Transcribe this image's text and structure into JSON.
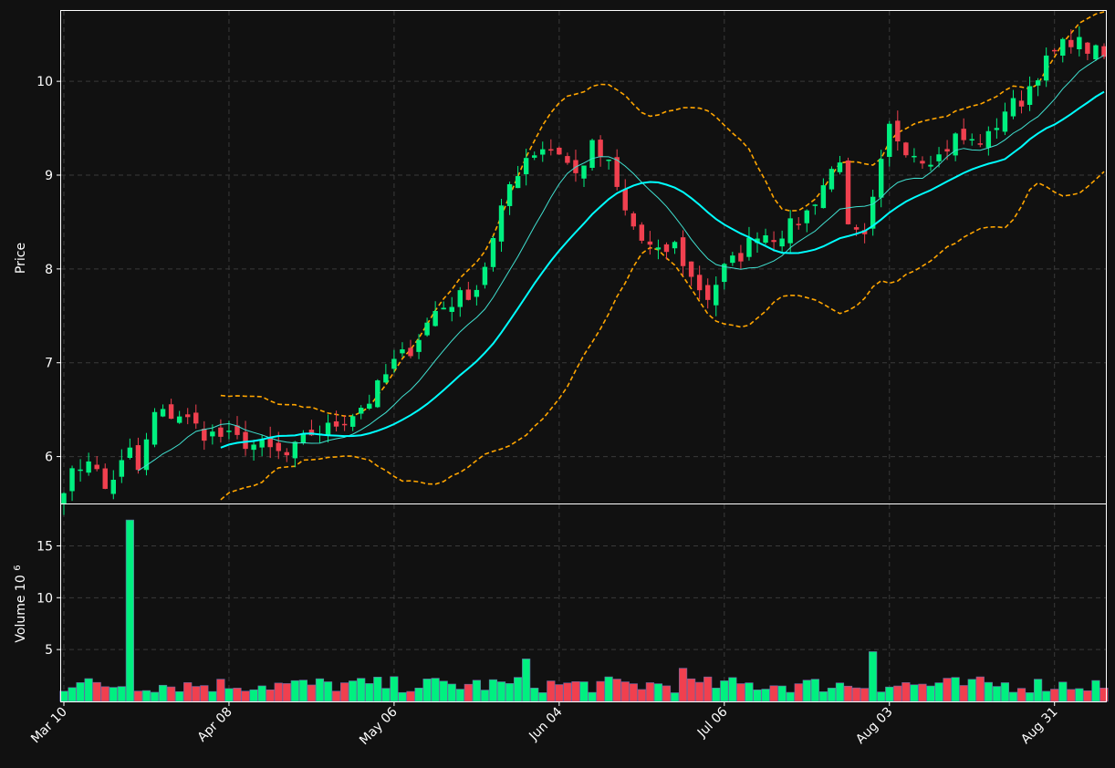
{
  "chart_data": {
    "type": "candlestick",
    "title": "",
    "colors": {
      "background": "#111111",
      "grid": "#3a3a3a",
      "axis": "#ffffff",
      "up": "#00f080",
      "down": "#f0404f",
      "ma_fast": "#40e0d0",
      "ma_slow": "#00ffff",
      "bands": "#ffa500"
    },
    "price_panel": {
      "ylabel": "Price",
      "ylim": [
        5.5,
        10.75
      ],
      "yticks": [
        6,
        7,
        8,
        9,
        10
      ]
    },
    "volume_panel": {
      "ylabel": "Volume",
      "ylabel_exponent": "10",
      "ylabel_exponent_power": "6",
      "ylim": [
        0,
        19
      ],
      "yticks": [
        5,
        10,
        15
      ]
    },
    "x_ticks": [
      {
        "label": "Mar 10",
        "index": 0
      },
      {
        "label": "Apr 08",
        "index": 20
      },
      {
        "label": "May 06",
        "index": 40
      },
      {
        "label": "Jun 04",
        "index": 60
      },
      {
        "label": "Jul 06",
        "index": 80
      },
      {
        "label": "Aug 03",
        "index": 100
      },
      {
        "label": "Aug 31",
        "index": 120
      }
    ],
    "grid": true,
    "ohlc_key_closes": [
      [
        0,
        5.7
      ],
      [
        3,
        6.0
      ],
      [
        5,
        5.65
      ],
      [
        8,
        6.05
      ],
      [
        9,
        5.85
      ],
      [
        11,
        6.45
      ],
      [
        14,
        6.45
      ],
      [
        17,
        6.25
      ],
      [
        20,
        6.2
      ],
      [
        24,
        6.1
      ],
      [
        27,
        6.0
      ],
      [
        30,
        6.25
      ],
      [
        32,
        6.3
      ],
      [
        34,
        6.4
      ],
      [
        37,
        6.6
      ],
      [
        40,
        7.0
      ],
      [
        42,
        7.15
      ],
      [
        45,
        7.55
      ],
      [
        48,
        7.7
      ],
      [
        50,
        7.8
      ],
      [
        52,
        8.3
      ],
      [
        54,
        8.9
      ],
      [
        56,
        9.2
      ],
      [
        58,
        9.3
      ],
      [
        60,
        9.25
      ],
      [
        62,
        9.0
      ],
      [
        64,
        9.3
      ],
      [
        66,
        9.1
      ],
      [
        68,
        8.6
      ],
      [
        70,
        8.3
      ],
      [
        72,
        8.15
      ],
      [
        74,
        8.25
      ],
      [
        76,
        7.9
      ],
      [
        78,
        7.7
      ],
      [
        80,
        8.0
      ],
      [
        82,
        8.15
      ],
      [
        84,
        8.4
      ],
      [
        86,
        8.35
      ],
      [
        88,
        8.45
      ],
      [
        90,
        8.6
      ],
      [
        92,
        8.9
      ],
      [
        94,
        9.2
      ],
      [
        95,
        8.4
      ],
      [
        97,
        8.3
      ],
      [
        98,
        8.7
      ],
      [
        100,
        9.5
      ],
      [
        102,
        9.3
      ],
      [
        104,
        9.2
      ],
      [
        106,
        9.2
      ],
      [
        108,
        9.4
      ],
      [
        110,
        9.35
      ],
      [
        112,
        9.4
      ],
      [
        114,
        9.7
      ],
      [
        116,
        9.8
      ],
      [
        118,
        10.1
      ],
      [
        120,
        10.3
      ],
      [
        122,
        10.45
      ],
      [
        124,
        10.35
      ],
      [
        126,
        10.25
      ]
    ],
    "volume_spikes": [
      [
        8,
        17.5
      ],
      [
        56,
        4.1
      ],
      [
        75,
        3.2
      ],
      [
        98,
        4.8
      ]
    ],
    "n_candles": 127
  }
}
